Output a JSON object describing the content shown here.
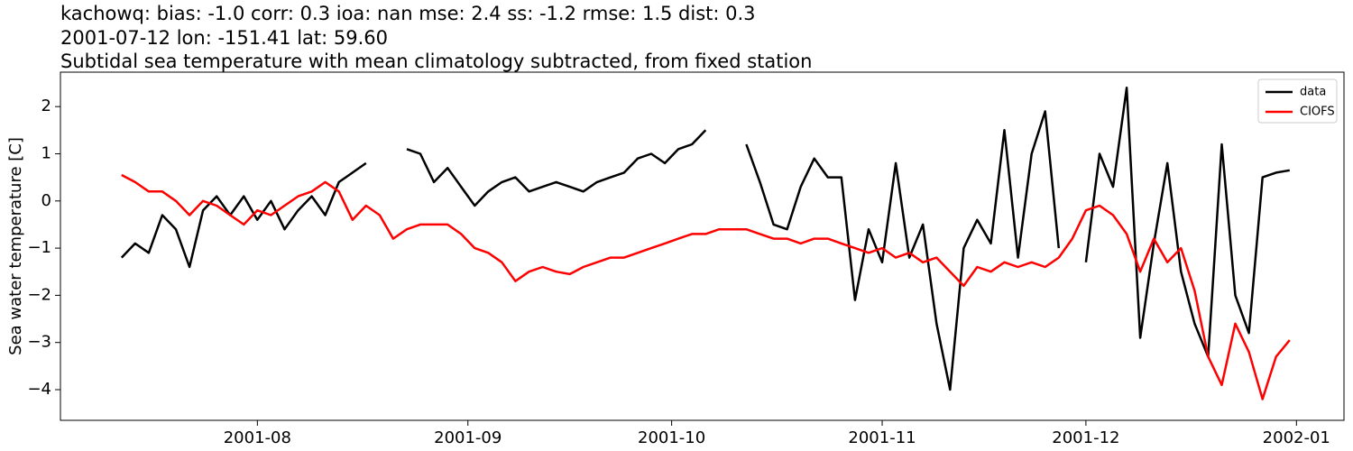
{
  "chart_data": {
    "type": "line",
    "title_lines": [
      "kachowq: bias: -1.0  corr: 0.3  ioa: nan  mse: 2.4  ss: -1.2  rmse: 1.5  dist: 0.3",
      "2001-07-12 lon: -151.41 lat: 59.60",
      "Subtidal sea temperature with mean climatology subtracted, from fixed station"
    ],
    "y_label": "Sea water temperature [C]",
    "x": [
      "2001-07-12",
      "2001-07-14",
      "2001-07-16",
      "2001-07-18",
      "2001-07-20",
      "2001-07-22",
      "2001-07-24",
      "2001-07-26",
      "2001-07-28",
      "2001-07-30",
      "2001-08-01",
      "2001-08-03",
      "2001-08-05",
      "2001-08-07",
      "2001-08-09",
      "2001-08-11",
      "2001-08-13",
      "2001-08-15",
      "2001-08-17",
      "2001-08-19",
      "2001-08-21",
      "2001-08-23",
      "2001-08-25",
      "2001-08-27",
      "2001-08-29",
      "2001-08-31",
      "2001-09-02",
      "2001-09-04",
      "2001-09-06",
      "2001-09-08",
      "2001-09-10",
      "2001-09-12",
      "2001-09-14",
      "2001-09-16",
      "2001-09-18",
      "2001-09-20",
      "2001-09-22",
      "2001-09-24",
      "2001-09-26",
      "2001-09-28",
      "2001-09-30",
      "2001-10-02",
      "2001-10-04",
      "2001-10-06",
      "2001-10-08",
      "2001-10-10",
      "2001-10-12",
      "2001-10-14",
      "2001-10-16",
      "2001-10-18",
      "2001-10-20",
      "2001-10-22",
      "2001-10-24",
      "2001-10-26",
      "2001-10-28",
      "2001-10-30",
      "2001-11-01",
      "2001-11-03",
      "2001-11-05",
      "2001-11-07",
      "2001-11-09",
      "2001-11-11",
      "2001-11-13",
      "2001-11-15",
      "2001-11-17",
      "2001-11-19",
      "2001-11-21",
      "2001-11-23",
      "2001-11-25",
      "2001-11-27",
      "2001-11-29",
      "2001-12-01",
      "2001-12-03",
      "2001-12-05",
      "2001-12-07",
      "2001-12-09",
      "2001-12-11",
      "2001-12-13",
      "2001-12-15",
      "2001-12-17",
      "2001-12-19",
      "2001-12-21",
      "2001-12-23",
      "2001-12-25",
      "2001-12-27",
      "2001-12-29",
      "2001-12-31"
    ],
    "series": [
      {
        "name": "data",
        "color": "#000000",
        "values": [
          -1.2,
          -0.9,
          -1.1,
          -0.3,
          -0.6,
          -1.4,
          -0.2,
          0.1,
          -0.3,
          0.1,
          -0.4,
          0.0,
          -0.6,
          -0.2,
          0.1,
          -0.3,
          0.4,
          0.6,
          0.8,
          null,
          null,
          1.1,
          1.0,
          0.4,
          0.7,
          0.3,
          -0.1,
          0.2,
          0.4,
          0.5,
          0.2,
          0.3,
          0.4,
          0.3,
          0.2,
          0.4,
          0.5,
          0.6,
          0.9,
          1.0,
          0.8,
          1.1,
          1.2,
          1.5,
          null,
          null,
          1.2,
          0.4,
          -0.5,
          -0.6,
          0.3,
          0.9,
          0.5,
          0.5,
          -2.1,
          -0.6,
          -1.3,
          0.8,
          -1.2,
          -0.5,
          -2.6,
          -4.0,
          -1.0,
          -0.4,
          -0.9,
          1.5,
          -1.2,
          1.0,
          1.9,
          -1.0,
          null,
          -1.3,
          1.0,
          0.3,
          2.4,
          -2.9,
          -0.9,
          0.8,
          -1.5,
          -2.6,
          -3.3,
          1.2,
          -2.0,
          -2.8,
          0.5,
          0.6,
          0.65
        ]
      },
      {
        "name": "CIOFS",
        "color": "#ff0000",
        "values": [
          0.55,
          0.4,
          0.2,
          0.2,
          0.0,
          -0.3,
          0.0,
          -0.1,
          -0.3,
          -0.5,
          -0.2,
          -0.3,
          -0.1,
          0.1,
          0.2,
          0.4,
          0.2,
          -0.4,
          -0.1,
          -0.3,
          -0.8,
          -0.6,
          -0.5,
          -0.5,
          -0.5,
          -0.7,
          -1.0,
          -1.1,
          -1.3,
          -1.7,
          -1.5,
          -1.4,
          -1.5,
          -1.55,
          -1.4,
          -1.3,
          -1.2,
          -1.2,
          -1.1,
          -1.0,
          -0.9,
          -0.8,
          -0.7,
          -0.7,
          -0.6,
          -0.6,
          -0.6,
          -0.7,
          -0.8,
          -0.8,
          -0.9,
          -0.8,
          -0.8,
          -0.9,
          -1.0,
          -1.1,
          -1.0,
          -1.2,
          -1.1,
          -1.3,
          -1.2,
          -1.5,
          -1.8,
          -1.4,
          -1.5,
          -1.3,
          -1.4,
          -1.3,
          -1.4,
          -1.2,
          -0.8,
          -0.2,
          -0.1,
          -0.3,
          -0.7,
          -1.5,
          -0.8,
          -1.3,
          -1.0,
          -1.9,
          -3.3,
          -3.9,
          -2.6,
          -3.2,
          -4.2,
          -3.3,
          -2.95
        ]
      }
    ],
    "xlim": [
      "2001-07-03",
      "2002-01-08"
    ],
    "xticks": [
      {
        "value": "2001-08-01",
        "label": "2001-08"
      },
      {
        "value": "2001-09-01",
        "label": "2001-09"
      },
      {
        "value": "2001-10-01",
        "label": "2001-10"
      },
      {
        "value": "2001-11-01",
        "label": "2001-11"
      },
      {
        "value": "2001-12-01",
        "label": "2001-12"
      },
      {
        "value": "2002-01-01",
        "label": "2002-01"
      }
    ],
    "ylim": [
      -4.65,
      2.73
    ],
    "yticks": [
      {
        "value": -4,
        "label": "−4"
      },
      {
        "value": -3,
        "label": "−3"
      },
      {
        "value": -2,
        "label": "−2"
      },
      {
        "value": -1,
        "label": "−1"
      },
      0,
      1,
      2
    ],
    "legend": "upper right"
  }
}
